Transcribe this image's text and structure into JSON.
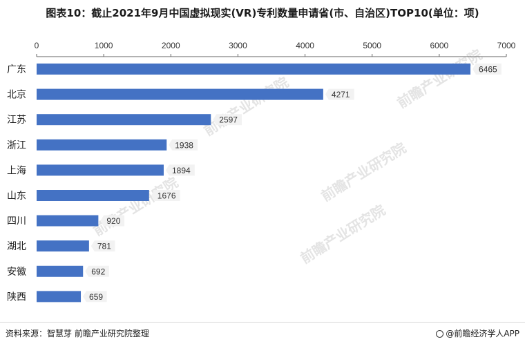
{
  "title": "图表10：截止2021年9月中国虚拟现实(VR)专利数量申请省(市、自治区)TOP10(单位：项)",
  "footer": {
    "source": "资料来源：智慧芽 前瞻产业研究院整理",
    "brand": "@前瞻经济学人APP"
  },
  "watermark": "前瞻产业研究院",
  "colors": {
    "bar": "#4472c4",
    "label_bg": "#f2f2f2",
    "axis": "#444444"
  },
  "chart_data": {
    "type": "bar",
    "orientation": "horizontal",
    "categories": [
      "广东",
      "北京",
      "江苏",
      "浙江",
      "上海",
      "山东",
      "四川",
      "湖北",
      "安徽",
      "陕西"
    ],
    "values": [
      6465,
      4271,
      2597,
      1938,
      1894,
      1676,
      920,
      781,
      692,
      659
    ],
    "xlim": [
      0,
      7000
    ],
    "xticks": [
      0,
      1000,
      2000,
      3000,
      4000,
      5000,
      6000,
      7000
    ],
    "xaxis_position": "top",
    "data_labels": true,
    "grid": false,
    "legend": "none"
  }
}
